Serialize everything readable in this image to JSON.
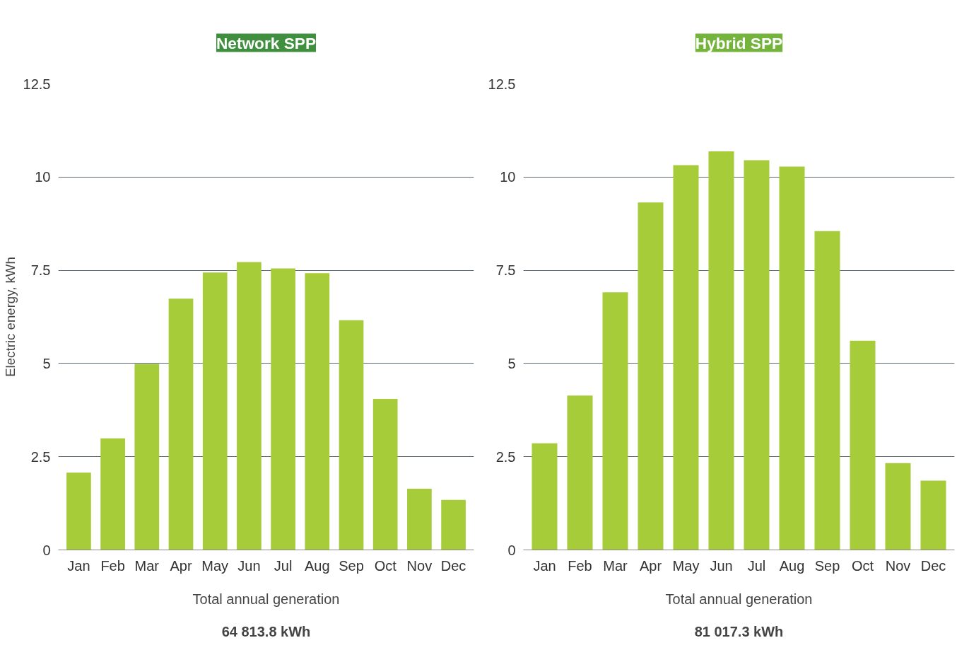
{
  "chart_data": [
    {
      "type": "bar",
      "title": "Network SPP",
      "ylabel": "Electric energy, kWh",
      "categories": [
        "Jan",
        "Feb",
        "Mar",
        "Apr",
        "May",
        "Jun",
        "Jul",
        "Aug",
        "Sep",
        "Oct",
        "Nov",
        "Dec"
      ],
      "values": [
        2.07,
        2.99,
        4.99,
        6.74,
        7.44,
        7.72,
        7.55,
        7.42,
        6.16,
        4.05,
        1.64,
        1.34
      ],
      "color": "#a6cc3a",
      "ylim": [
        0,
        12.5
      ],
      "yticks": [
        0,
        2.5,
        5,
        7.5,
        10,
        12.5
      ],
      "grid": "y",
      "annotations": [
        "Total annual generation",
        "64 813.8 kWh"
      ]
    },
    {
      "type": "bar",
      "title": "Hybrid SPP",
      "categories": [
        "Jan",
        "Feb",
        "Mar",
        "Apr",
        "May",
        "Jun",
        "Jul",
        "Aug",
        "Sep",
        "Oct",
        "Nov",
        "Dec"
      ],
      "values": [
        2.86,
        4.14,
        6.91,
        9.32,
        10.32,
        10.69,
        10.45,
        10.28,
        8.55,
        5.61,
        2.33,
        1.86
      ],
      "color": "#a6cc3a",
      "ylim": [
        0,
        12.5
      ],
      "yticks": [
        0,
        2.5,
        5,
        7.5,
        10,
        12.5
      ],
      "grid": "y",
      "annotations": [
        "Total annual generation",
        "81 017.3 kWh"
      ]
    }
  ]
}
